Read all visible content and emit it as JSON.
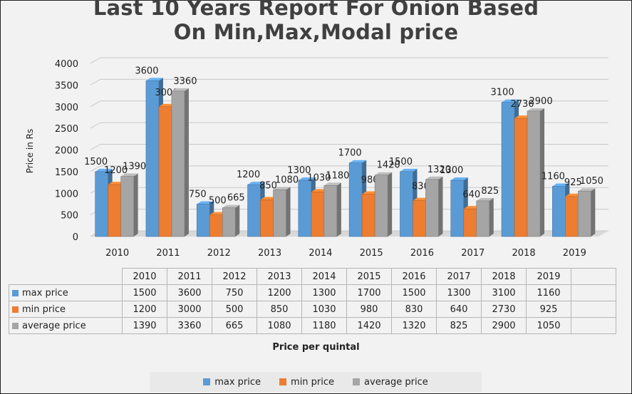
{
  "chart_data": {
    "type": "bar",
    "title_lines": [
      "Last 10 Years Report For Onion Based",
      "On Min,Max,Modal price"
    ],
    "xlabel": "Price per quintal",
    "ylabel": "Price in Rs",
    "ylim": [
      0,
      4000
    ],
    "yticks": [
      "0",
      "500",
      "1000",
      "1500",
      "2000",
      "2500",
      "3000",
      "3500",
      "4000"
    ],
    "categories": [
      "2010",
      "2011",
      "2012",
      "2013",
      "2014",
      "2015",
      "2016",
      "2017",
      "2018",
      "2019"
    ],
    "series": [
      {
        "name": "max price",
        "color": "#5b9bd5",
        "values": [
          1500,
          3600,
          750,
          1200,
          1300,
          1700,
          1500,
          1300,
          3100,
          1160
        ]
      },
      {
        "name": "min price",
        "color": "#ed7d31",
        "values": [
          1200,
          3000,
          500,
          850,
          1030,
          980,
          830,
          640,
          2730,
          925
        ]
      },
      {
        "name": "average price",
        "color": "#a5a5a5",
        "values": [
          1390,
          3360,
          665,
          1080,
          1180,
          1420,
          1320,
          825,
          2900,
          1050
        ]
      }
    ],
    "grid": true,
    "legend_position": "bottom",
    "data_table": true
  }
}
